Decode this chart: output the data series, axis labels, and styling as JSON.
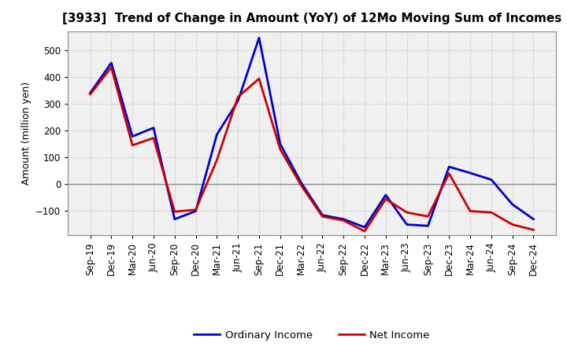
{
  "title": "[3933]  Trend of Change in Amount (YoY) of 12Mo Moving Sum of Incomes",
  "ylabel": "Amount (million yen)",
  "xlabels": [
    "Sep-19",
    "Dec-19",
    "Mar-20",
    "Jun-20",
    "Sep-20",
    "Dec-20",
    "Mar-21",
    "Jun-21",
    "Sep-21",
    "Dec-21",
    "Mar-22",
    "Jun-22",
    "Sep-22",
    "Dec-22",
    "Mar-23",
    "Jun-23",
    "Sep-23",
    "Dec-23",
    "Mar-24",
    "Jun-24",
    "Sep-24",
    "Dec-24"
  ],
  "ordinary_income": [
    340,
    452,
    178,
    210,
    -130,
    -100,
    185,
    310,
    545,
    150,
    5,
    -115,
    -130,
    -160,
    -40,
    -150,
    -155,
    65,
    42,
    17,
    -75,
    -130
  ],
  "net_income": [
    335,
    435,
    145,
    172,
    -102,
    -95,
    90,
    325,
    393,
    130,
    -5,
    -120,
    -135,
    -175,
    -55,
    -105,
    -120,
    40,
    -100,
    -105,
    -150,
    -170
  ],
  "ordinary_color": "#0000cc",
  "net_color": "#cc0000",
  "ylim": [
    -190,
    570
  ],
  "yticks": [
    -100,
    0,
    100,
    200,
    300,
    400,
    500
  ],
  "background_color": "#ffffff",
  "plot_bg_color": "#f0f0f0",
  "grid_color": "#bbbbbb",
  "zero_line_color": "#888888",
  "legend_ordinary": "Ordinary Income",
  "legend_net": "Net Income",
  "title_fontsize": 11,
  "axis_fontsize": 9,
  "tick_fontsize": 8.5
}
